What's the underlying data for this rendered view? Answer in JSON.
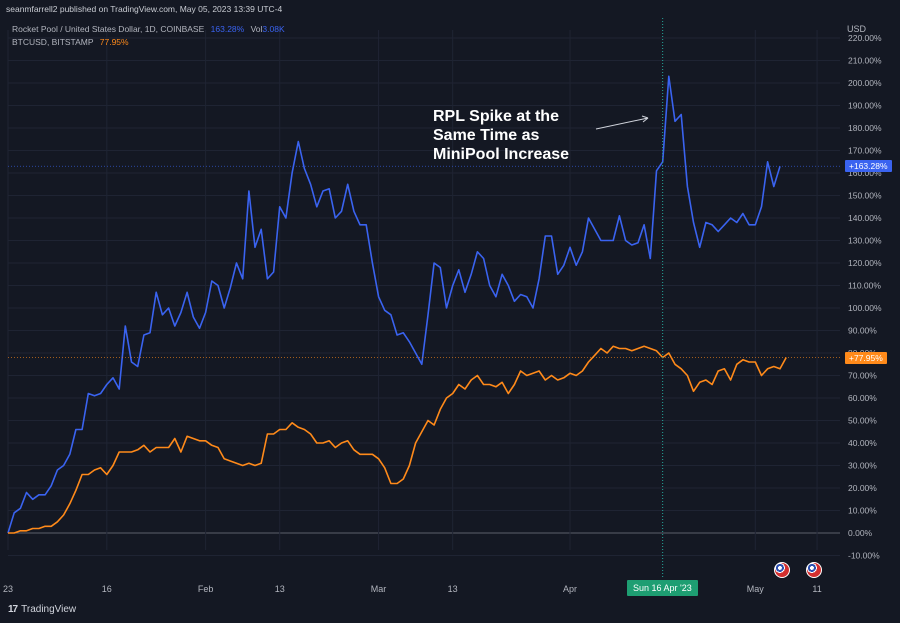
{
  "header": {
    "publisher_line": "seanmfarrell2 published on TradingView.com, May 05, 2023 13:39 UTC-4"
  },
  "legend": {
    "series1_label": "Rocket Pool / United States Dollar, 1D, COINBASE",
    "series1_value": "163.28%",
    "series1_vol_label": "Vol",
    "series1_vol_value": "3.08K",
    "series2_label": "BTCUSD, BITSTAMP",
    "series2_value": "77.95%"
  },
  "axis_currency": "USD",
  "badges": {
    "rpl_last": "+163.28%",
    "btc_last": "+77.95%",
    "crosshair_date": "Sun 16 Apr '23"
  },
  "annotation": {
    "text": "RPL Spike at the\nSame Time as\nMiniPool Increase"
  },
  "brand": {
    "name": "TradingView",
    "logo_text": "17"
  },
  "colors": {
    "background": "#141823",
    "rpl": "#3a63f0",
    "btc": "#ff8a1a",
    "crosshair": "#26a69a",
    "grid": "#1f2433"
  },
  "chart_data": {
    "type": "line",
    "ylabel": "",
    "ylim": [
      -10,
      220
    ],
    "y_ticks": [
      "-10.00%",
      "0.00%",
      "10.00%",
      "20.00%",
      "30.00%",
      "40.00%",
      "50.00%",
      "60.00%",
      "70.00%",
      "80.00%",
      "90.00%",
      "100.00%",
      "110.00%",
      "120.00%",
      "130.00%",
      "140.00%",
      "150.00%",
      "160.00%",
      "170.00%",
      "180.00%",
      "190.00%",
      "200.00%",
      "210.00%",
      "220.00%"
    ],
    "x_ticks": [
      {
        "label": "23",
        "day": 0
      },
      {
        "label": "16",
        "day": 16
      },
      {
        "label": "Feb",
        "day": 32
      },
      {
        "label": "13",
        "day": 44
      },
      {
        "label": "Mar",
        "day": 60
      },
      {
        "label": "13",
        "day": 72
      },
      {
        "label": "Apr",
        "day": 91
      },
      {
        "label": "May",
        "day": 121
      },
      {
        "label": "11",
        "day": 131
      }
    ],
    "xlim": [
      0,
      137
    ],
    "crosshair_day": 106,
    "series": [
      {
        "name": "Rocket Pool / United States Dollar, 1D, COINBASE",
        "key": "rpl",
        "values": [
          0,
          9,
          11,
          18,
          15,
          17,
          17,
          21,
          28,
          30,
          35,
          46,
          46,
          62,
          61,
          62,
          66,
          69,
          64,
          92,
          76,
          74,
          88,
          89,
          107,
          97,
          100,
          92,
          98,
          107,
          96,
          91,
          98,
          112,
          110,
          100,
          109,
          120,
          113,
          152,
          127,
          135,
          113,
          116,
          145,
          140,
          160,
          174,
          162,
          155,
          145,
          152,
          153,
          140,
          143,
          155,
          143,
          137,
          137,
          120,
          105,
          99,
          97,
          88,
          89,
          85,
          80,
          75,
          97,
          120,
          118,
          100,
          110,
          117,
          107,
          115,
          125,
          122,
          110,
          105,
          115,
          110,
          103,
          106,
          105,
          100,
          113,
          132,
          132,
          115,
          119,
          127,
          119,
          125,
          140,
          135,
          130,
          130,
          130,
          141,
          130,
          128,
          129,
          137,
          122,
          161,
          165,
          203,
          183,
          186,
          154,
          138,
          127,
          138,
          137,
          134,
          137,
          140,
          138,
          142,
          137,
          137,
          145,
          165,
          154,
          163
        ]
      },
      {
        "name": "BTCUSD, BITSTAMP",
        "key": "btc",
        "values": [
          0,
          0,
          1,
          1,
          2,
          2,
          3,
          3,
          5,
          8,
          13,
          19,
          26,
          26,
          28,
          29,
          26,
          30,
          36,
          36,
          36,
          37,
          39,
          36,
          38,
          38,
          38,
          42,
          36,
          43,
          42,
          41,
          41,
          39,
          38,
          33,
          32,
          31,
          30,
          31,
          30,
          31,
          44,
          44,
          46,
          46,
          49,
          47,
          46,
          44,
          40,
          40,
          41,
          38,
          40,
          41,
          37,
          35,
          35,
          35,
          33,
          29,
          22,
          22,
          24,
          30,
          40,
          45,
          50,
          48,
          55,
          60,
          62,
          66,
          64,
          68,
          70,
          66,
          66,
          65,
          67,
          62,
          66,
          72,
          70,
          71,
          72,
          68,
          70,
          68,
          69,
          71,
          70,
          72,
          76,
          79,
          82,
          80,
          83,
          82,
          82,
          81,
          82,
          83,
          82,
          81,
          78,
          80,
          75,
          73,
          70,
          63,
          67,
          68,
          66,
          72,
          73,
          68,
          75,
          77,
          76,
          76,
          70,
          73,
          74,
          73,
          78
        ]
      }
    ]
  }
}
